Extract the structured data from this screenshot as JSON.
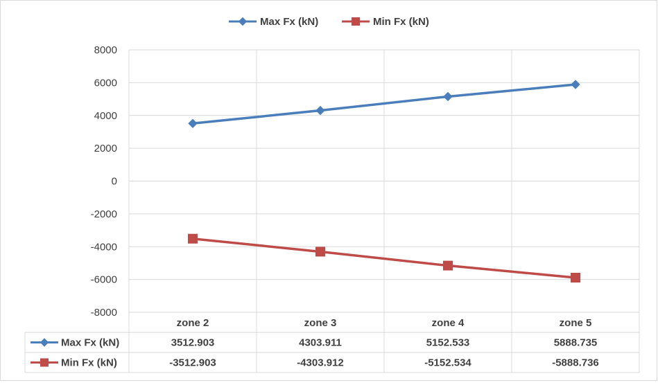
{
  "chart_data": {
    "type": "line",
    "title": "",
    "xlabel": "",
    "ylabel": "",
    "categories": [
      "zone 2",
      "zone 3",
      "zone 4",
      "zone 5"
    ],
    "series": [
      {
        "name": "Max Fx (kN)",
        "values": [
          3512.903,
          4303.911,
          5152.533,
          5888.735
        ],
        "value_labels": [
          "3512.903",
          "4303.911",
          "5152.533",
          "5888.735"
        ],
        "color": "#4a7ebb",
        "marker": "diamond"
      },
      {
        "name": "Min Fx (kN)",
        "values": [
          -3512.903,
          -4303.912,
          -5152.534,
          -5888.736
        ],
        "value_labels": [
          "-3512.903",
          "-4303.912",
          "-5152.534",
          "-5888.736"
        ],
        "color": "#be4b48",
        "marker": "square"
      }
    ],
    "ylim": [
      -8000,
      8000
    ],
    "yticks": [
      "8000",
      "6000",
      "4000",
      "2000",
      "0",
      "-2000",
      "-4000",
      "-6000",
      "-8000"
    ],
    "grid": true,
    "legend_position": "top",
    "data_table": true
  }
}
